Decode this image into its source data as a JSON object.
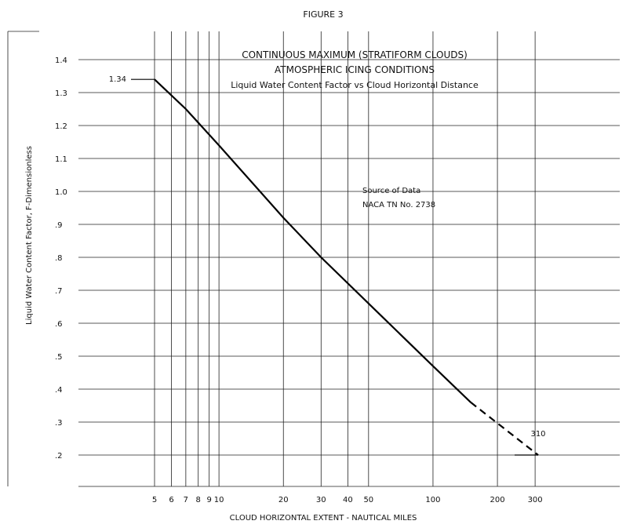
{
  "figure_label": "FIGURE 3",
  "title_lines": [
    "CONTINUOUS MAXIMUM (STRATIFORM CLOUDS)",
    "ATMOSPHERIC ICING CONDITIONS",
    "Liquid Water Content Factor vs Cloud Horizontal Distance"
  ],
  "source_note": [
    "Source of Data",
    "NACA TN No. 2738"
  ],
  "chart_data": {
    "type": "line",
    "title": "CONTINUOUS MAXIMUM (STRATIFORM CLOUDS) ATMOSPHERIC ICING CONDITIONS",
    "subtitle": "Liquid Water Content Factor vs Cloud Horizontal Distance",
    "xlabel": "CLOUD HORIZONTAL EXTENT - NAUTICAL MILES",
    "ylabel": "Liquid Water Content Factor, F-Dimensionless",
    "x_scale": "log",
    "xlim": [
      5,
      310
    ],
    "ylim": [
      0.2,
      1.4
    ],
    "x_ticks": [
      5,
      6,
      7,
      8,
      9,
      10,
      20,
      30,
      40,
      50,
      100,
      200,
      300
    ],
    "x_tick_labels": [
      "5",
      "6",
      "7",
      "8",
      "9",
      "10",
      "20",
      "30",
      "40",
      "50",
      "100",
      "200",
      "300"
    ],
    "y_ticks": [
      0.2,
      0.3,
      0.4,
      0.5,
      0.6,
      0.7,
      0.8,
      0.9,
      1.0,
      1.1,
      1.2,
      1.3,
      1.4
    ],
    "y_tick_labels": [
      ".2",
      ".3",
      ".4",
      ".5",
      ".6",
      ".7",
      ".8",
      ".9",
      "1.0",
      "1.1",
      "1.2",
      "1.3",
      "1.4"
    ],
    "grid": true,
    "annotations": [
      {
        "text": "1.34",
        "x": 5,
        "y": 1.34
      },
      {
        "text": "310",
        "x": 310,
        "y": 0.2
      }
    ],
    "series": [
      {
        "style": "solid",
        "x": [
          5,
          7,
          10,
          20,
          30,
          50,
          100,
          150
        ],
        "y": [
          1.34,
          1.25,
          1.14,
          0.92,
          0.8,
          0.66,
          0.47,
          0.36
        ]
      },
      {
        "style": "dashed",
        "x": [
          150,
          310
        ],
        "y": [
          0.36,
          0.2
        ]
      }
    ]
  }
}
